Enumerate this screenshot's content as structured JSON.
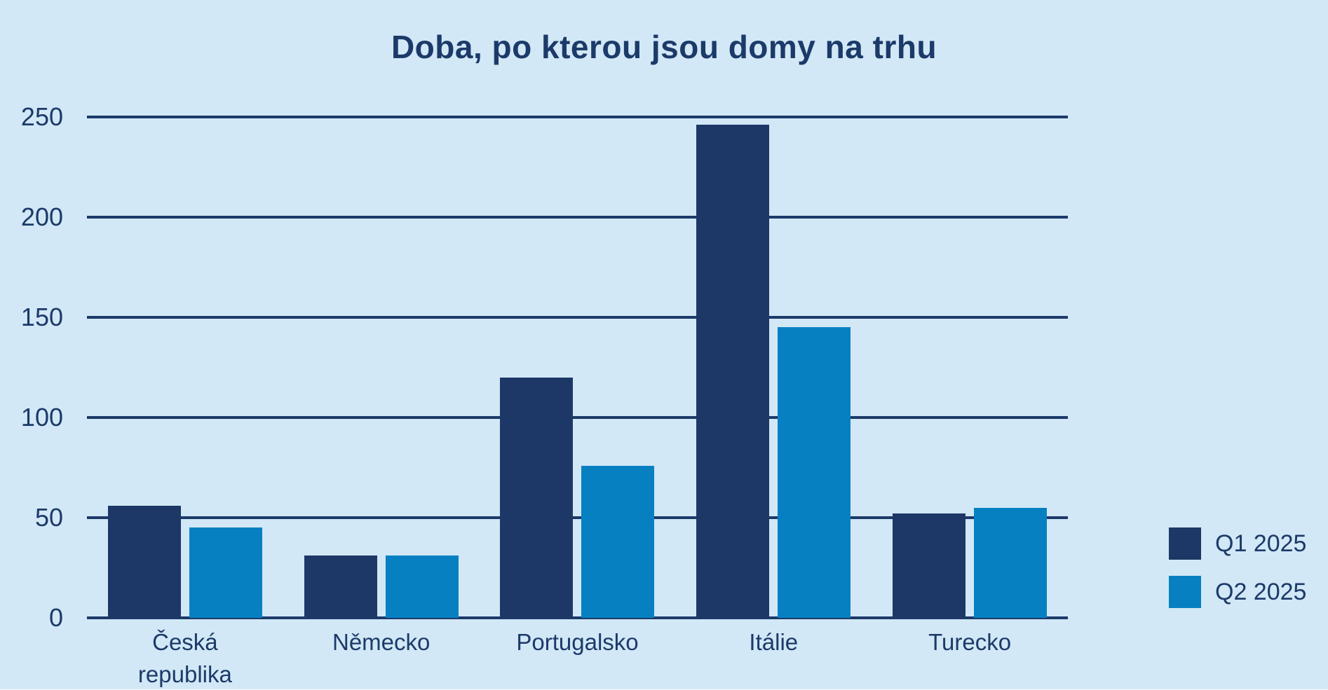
{
  "page": {
    "background_color": "#d2e8f6",
    "text_color": "#1c3a69"
  },
  "chart_data": {
    "type": "bar",
    "title": "Doba, po kterou jsou domy na trhu",
    "categories": [
      "Česká republika",
      "Německo",
      "Portugalsko",
      "Itálie",
      "Turecko"
    ],
    "series": [
      {
        "name": "Q1 2025",
        "color": "#1d3866",
        "values": [
          56,
          31,
          120,
          246,
          52
        ]
      },
      {
        "name": "Q2 2025",
        "color": "#0780c2",
        "values": [
          45,
          31,
          76,
          145,
          55
        ]
      }
    ],
    "xlabel": "",
    "ylabel": "",
    "ylim": [
      0,
      250
    ],
    "y_ticks": [
      250,
      200,
      150,
      100,
      50,
      0
    ],
    "grid": true,
    "gridline_color": "#1c3a69",
    "legend_position": "right"
  }
}
